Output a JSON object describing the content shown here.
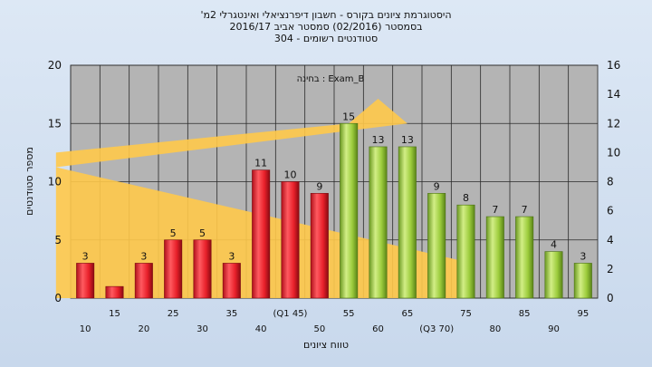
{
  "chart_data": {
    "type": "bar",
    "title_lines": [
      "'היסטוגרמת ציונים בקורס - חשבון דיפרנציאלי ואינטגרלי 2מ",
      "בסמסטר  (02/2016)  סמסטר אביב 2016/17",
      "סטודנטים רשומים - 304"
    ],
    "annotation": "בחינה : Exam_B",
    "xlabel": "טווח ציונים",
    "ylabel": "מספר סטודנטים",
    "ylim": [
      0,
      20
    ],
    "yticks": [
      0,
      5,
      10,
      15,
      20
    ],
    "y2lim": [
      0,
      16
    ],
    "y2ticks": [
      0,
      2,
      4,
      6,
      8,
      10,
      12,
      14,
      16
    ],
    "categories": [
      "10",
      "15",
      "20",
      "25",
      "30",
      "35",
      "40",
      "(Q1 45)",
      "50",
      "55",
      "60",
      "65",
      "(Q3 70)",
      "75",
      "80",
      "85",
      "90",
      "95"
    ],
    "values": [
      3,
      1,
      3,
      5,
      5,
      3,
      11,
      10,
      9,
      15,
      13,
      13,
      9,
      8,
      7,
      7,
      4,
      3
    ],
    "value_labels": [
      "3",
      "",
      "3",
      "5",
      "5",
      "3",
      "11",
      "10",
      "9",
      "15",
      "13",
      "13",
      "9",
      "8",
      "7",
      "7",
      "4",
      "3"
    ],
    "bar_groups": [
      "low",
      "low",
      "low",
      "low",
      "low",
      "low",
      "low",
      "low",
      "low",
      "high",
      "high",
      "high",
      "high",
      "high",
      "high",
      "high",
      "high",
      "high"
    ],
    "colors": {
      "low": "#e8202a",
      "high": "#9ccc3c",
      "area": "#ffc94a",
      "plot_bg": "#b4b4b4",
      "grid": "#333333"
    },
    "distribution_area": {
      "axis": "secondary",
      "points": [
        [
          45,
          10
        ],
        [
          55,
          12
        ],
        [
          60,
          13.7
        ],
        [
          65,
          12
        ],
        [
          70,
          9
        ],
        [
          75,
          2.5
        ]
      ]
    },
    "grid": true
  }
}
